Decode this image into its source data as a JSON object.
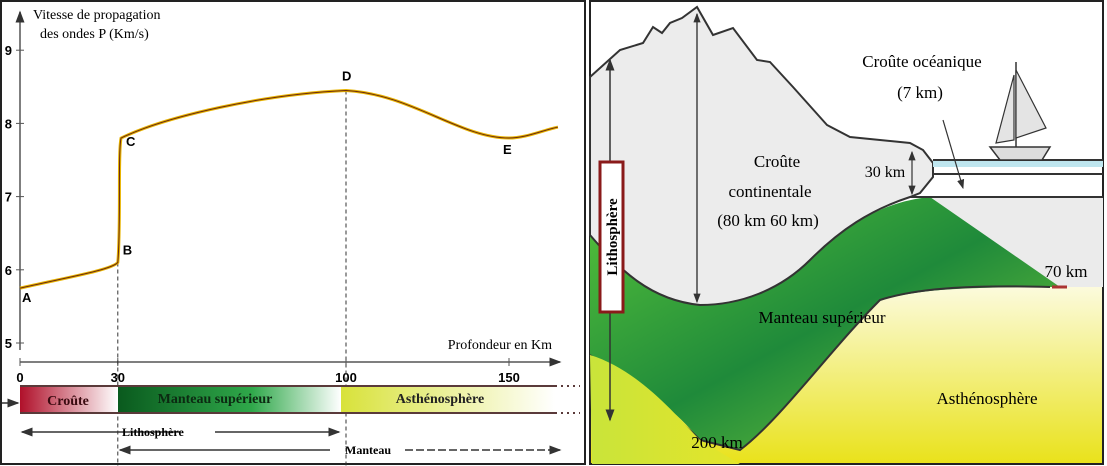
{
  "left": {
    "ylabel_line1": "Vitesse de propagation",
    "ylabel_line2": "des ondes P (Km/s)",
    "xlabel": "Profondeur en Km",
    "bands": {
      "croute": "Croûte",
      "manteau_sup": "Manteau supérieur",
      "astheno": "Asthénosphère"
    },
    "lithosphere": "Lithosphère",
    "manteau": "Manteau"
  },
  "chart_data": {
    "type": "line",
    "xlabel": "Profondeur en Km",
    "ylabel": "Vitesse de propagation des ondes P (Km/s)",
    "xticks": [
      "0",
      "30",
      "100",
      "150"
    ],
    "yticks": [
      "5",
      "6",
      "7",
      "8",
      "9"
    ],
    "xlim": [
      0,
      165
    ],
    "ylim": [
      5,
      9.3
    ],
    "points": [
      {
        "x": 0,
        "y": 5.75,
        "label": "A"
      },
      {
        "x": 30,
        "y": 6.1,
        "label": "B"
      },
      {
        "x": 31,
        "y": 7.8,
        "label": "C"
      },
      {
        "x": 100,
        "y": 8.45,
        "label": "D"
      },
      {
        "x": 150,
        "y": 7.8,
        "label": "E"
      },
      {
        "x": 165,
        "y": 7.95,
        "label": ""
      }
    ],
    "line_color": "#e8b400"
  },
  "right": {
    "oceanic_crust_line1": "Croûte océanique",
    "oceanic_crust_line2": "(7 km)",
    "cont_crust_line1": "Croûte",
    "cont_crust_line2": "continentale",
    "cont_crust_line3": "(80 km  60 km)",
    "depth_30": "30 km",
    "depth_70": "70 km",
    "depth_200": "200 km",
    "upper_mantle": "Manteau supérieur",
    "asthenosphere": "Asthénosphère",
    "lithosphere": "Lithosphère"
  }
}
